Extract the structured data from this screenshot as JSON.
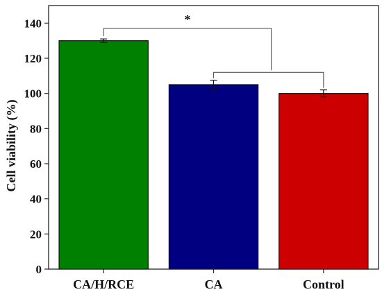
{
  "chart_data": {
    "type": "bar",
    "title": "",
    "xlabel": "",
    "ylabel": "Cell viability (%)",
    "ylim": [
      0,
      150
    ],
    "yticks": [
      0,
      20,
      40,
      60,
      80,
      100,
      120,
      140
    ],
    "categories": [
      "CA/H/RCE",
      "CA",
      "Control"
    ],
    "series": [
      {
        "values": [
          130,
          105,
          100
        ],
        "errors": [
          1,
          2.5,
          2
        ]
      }
    ],
    "colors": [
      "#008000",
      "#000080",
      "#cc0000"
    ],
    "grid": false,
    "legend": "none",
    "significance": [
      {
        "from": "CA/H/RCE",
        "to": "CA vs Control",
        "label": "*"
      }
    ]
  }
}
